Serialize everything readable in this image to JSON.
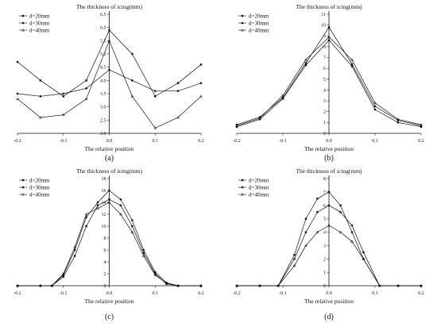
{
  "figure": {
    "panels": [
      {
        "panel_label": "(a)",
        "title": "The thickness of icing(mm)",
        "xlabel": "The relative position",
        "x_ticks": [
          "-0.2",
          "-0.1",
          "0.0",
          "0.1",
          "0.2"
        ],
        "y_ticks": [
          "2.0",
          "2.5",
          "3.0",
          "3.5",
          "4.0",
          "4.5",
          "5.0",
          "5.5",
          "6.0",
          "6.5"
        ],
        "legend": [
          "d=20mm",
          "d=30mm",
          "d=40mm"
        ]
      },
      {
        "panel_label": "(b)",
        "title": "The thickness of icing(mm)",
        "xlabel": "The relative position",
        "x_ticks": [
          "-0.2",
          "-0.1",
          "0.0",
          "0.1",
          "0.2"
        ],
        "y_ticks": [
          "0",
          "1",
          "2",
          "3",
          "4",
          "5",
          "6",
          "7",
          "8",
          "9",
          "10",
          "11"
        ],
        "legend": [
          "d=20mm",
          "d=30mm",
          "d=40mm"
        ]
      },
      {
        "panel_label": "(c)",
        "title": "The thickness of icing(mm)",
        "xlabel": "The relative position",
        "x_ticks": [
          "-0.2",
          "-0.1",
          "0.0",
          "0.1",
          "0.2"
        ],
        "y_ticks": [
          "0",
          "2",
          "4",
          "6",
          "8",
          "10",
          "12",
          "14",
          "16",
          "18"
        ],
        "legend": [
          "d=20mm",
          "d=30mm",
          "d=40mm"
        ]
      },
      {
        "panel_label": "(d)",
        "title": "The thickness of icing(mm)",
        "xlabel": "The relative position",
        "x_ticks": [
          "-0.2",
          "-0.1",
          "0.0",
          "0.1",
          "0.2"
        ],
        "y_ticks": [
          "0",
          "1",
          "2",
          "3",
          "4",
          "5",
          "6",
          "7",
          "8"
        ],
        "legend": [
          "d=20mm",
          "d=30mm",
          "d=40mm"
        ]
      }
    ]
  },
  "chart_data": [
    {
      "type": "line",
      "title": "The thickness of icing(mm)",
      "xlabel": "The relative position",
      "ylabel": "",
      "xlim": [
        -0.2,
        0.2
      ],
      "ylim": [
        2.0,
        6.5
      ],
      "grid": false,
      "legend_position": "top-left",
      "x": [
        -0.2,
        -0.15,
        -0.1,
        -0.05,
        0.0,
        0.05,
        0.1,
        0.15,
        0.2
      ],
      "series": [
        {
          "name": "d=20mm",
          "marker": "square",
          "values": [
            4.7,
            4.0,
            3.4,
            4.0,
            5.9,
            5.0,
            3.4,
            3.9,
            4.6
          ]
        },
        {
          "name": "d=30mm",
          "marker": "circle",
          "values": [
            3.5,
            3.4,
            3.5,
            3.7,
            4.4,
            4.0,
            3.6,
            3.6,
            3.9
          ]
        },
        {
          "name": "d=40mm",
          "marker": "triangle",
          "values": [
            3.3,
            2.6,
            2.7,
            3.3,
            5.5,
            3.4,
            2.2,
            2.6,
            3.4
          ]
        }
      ]
    },
    {
      "type": "line",
      "title": "The thickness of icing(mm)",
      "xlabel": "The relative position",
      "ylabel": "",
      "xlim": [
        -0.2,
        0.2
      ],
      "ylim": [
        0,
        11
      ],
      "grid": false,
      "legend_position": "top-left",
      "x": [
        -0.2,
        -0.15,
        -0.1,
        -0.05,
        0.0,
        0.05,
        0.1,
        0.15,
        0.2
      ],
      "series": [
        {
          "name": "d=20mm",
          "marker": "square",
          "values": [
            0.8,
            1.5,
            3.3,
            6.5,
            9.8,
            6.4,
            2.5,
            1.2,
            0.7
          ]
        },
        {
          "name": "d=30mm",
          "marker": "circle",
          "values": [
            0.6,
            1.3,
            3.2,
            6.3,
            8.6,
            6.2,
            2.2,
            1.0,
            0.6
          ]
        },
        {
          "name": "d=40mm",
          "marker": "triangle",
          "values": [
            0.7,
            1.4,
            3.5,
            6.8,
            8.9,
            6.8,
            2.8,
            1.3,
            0.8
          ]
        }
      ]
    },
    {
      "type": "line",
      "title": "The thickness of icing(mm)",
      "xlabel": "The relative position",
      "ylabel": "",
      "xlim": [
        -0.2,
        0.2
      ],
      "ylim": [
        0,
        18
      ],
      "grid": false,
      "legend_position": "top-left",
      "x": [
        -0.2,
        -0.15,
        -0.125,
        -0.1,
        -0.075,
        -0.05,
        -0.025,
        0.0,
        0.025,
        0.05,
        0.075,
        0.1,
        0.125,
        0.15,
        0.2
      ],
      "series": [
        {
          "name": "d=20mm",
          "marker": "square",
          "values": [
            0,
            0,
            0,
            1.5,
            5,
            10,
            13.5,
            14.5,
            13.5,
            10,
            5.5,
            2,
            0.3,
            0,
            0
          ]
        },
        {
          "name": "d=30mm",
          "marker": "circle",
          "values": [
            0,
            0,
            0,
            1.8,
            6,
            11.5,
            14,
            16,
            14.5,
            11,
            6,
            2.3,
            0.5,
            0,
            0
          ]
        },
        {
          "name": "d=40mm",
          "marker": "triangle",
          "values": [
            0,
            0,
            0,
            2,
            6.5,
            12,
            13,
            14,
            12,
            9,
            5,
            1.8,
            0.4,
            0,
            0
          ]
        }
      ]
    },
    {
      "type": "line",
      "title": "The thickness of icing(mm)",
      "xlabel": "The relative position",
      "ylabel": "",
      "xlim": [
        -0.2,
        0.2
      ],
      "ylim": [
        0,
        8
      ],
      "grid": false,
      "legend_position": "top-left",
      "x": [
        -0.2,
        -0.15,
        -0.11,
        -0.075,
        -0.05,
        -0.025,
        0.0,
        0.025,
        0.05,
        0.075,
        0.11,
        0.15,
        0.2
      ],
      "series": [
        {
          "name": "d=20mm",
          "marker": "square",
          "values": [
            0,
            0,
            0,
            2.3,
            5,
            6.5,
            7,
            6,
            4,
            2,
            0,
            0,
            0
          ]
        },
        {
          "name": "d=30mm",
          "marker": "circle",
          "values": [
            0,
            0,
            0,
            2,
            4,
            5.5,
            6,
            5.5,
            4.5,
            2.5,
            0,
            0,
            0
          ]
        },
        {
          "name": "d=40mm",
          "marker": "triangle",
          "values": [
            0,
            0,
            0,
            1.5,
            3,
            4,
            4.5,
            4,
            3.3,
            2,
            0,
            0,
            0
          ]
        }
      ]
    }
  ]
}
